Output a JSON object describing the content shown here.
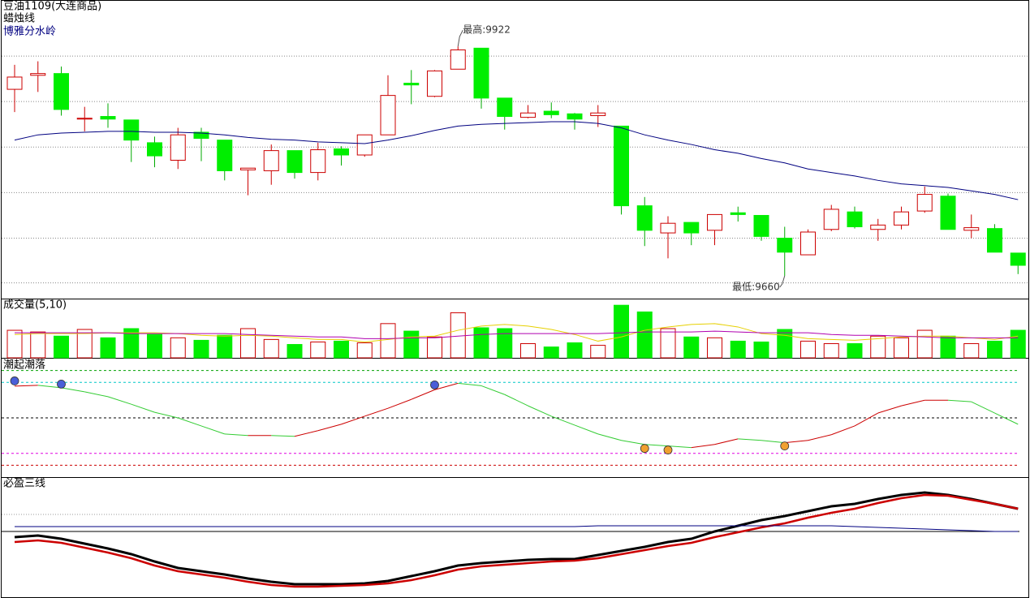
{
  "chart_data": [
    {
      "type": "candlestick",
      "title": "豆油1109(大连商品)",
      "subtitle": "蜡烛线",
      "up_color": "#cc0000",
      "down_color": "#00ee00",
      "open": [
        9873,
        9889,
        9891,
        9839,
        9842,
        9838,
        9812,
        9792,
        9824,
        9815,
        9781,
        9780,
        9803,
        9778,
        9805,
        9798,
        9821,
        9880,
        9865,
        9896,
        9920,
        9863,
        9841,
        9848,
        9845,
        9843,
        9831,
        9740,
        9709,
        9721,
        9712,
        9732,
        9729,
        9703,
        9684,
        9713,
        9733,
        9713,
        9718,
        9734,
        9751,
        9712,
        9714,
        9686
      ],
      "high": [
        9901,
        9905,
        9899,
        9853,
        9857,
        9838,
        9819,
        9829,
        9829,
        9815,
        9783,
        9810,
        9803,
        9812,
        9808,
        9821,
        9889,
        9895,
        9895,
        9922,
        9920,
        9863,
        9855,
        9858,
        9846,
        9855,
        9831,
        9750,
        9728,
        9721,
        9730,
        9739,
        9729,
        9716,
        9713,
        9741,
        9739,
        9725,
        9739,
        9762,
        9754,
        9730,
        9719,
        9686
      ],
      "low": [
        9847,
        9870,
        9843,
        9825,
        9829,
        9790,
        9784,
        9782,
        9791,
        9769,
        9752,
        9764,
        9771,
        9769,
        9786,
        9796,
        9821,
        9856,
        9864,
        9896,
        9851,
        9827,
        9840,
        9840,
        9827,
        9830,
        9730,
        9694,
        9680,
        9695,
        9695,
        9722,
        9700,
        9660,
        9684,
        9711,
        9714,
        9700,
        9713,
        9732,
        9713,
        9703,
        9687,
        9662
      ],
      "close": [
        9887,
        9891,
        9850,
        9840,
        9839,
        9815,
        9797,
        9821,
        9817,
        9780,
        9783,
        9803,
        9778,
        9804,
        9798,
        9821,
        9866,
        9878,
        9894,
        9918,
        9863,
        9842,
        9846,
        9844,
        9839,
        9846,
        9740,
        9712,
        9720,
        9709,
        9730,
        9730,
        9705,
        9687,
        9710,
        9736,
        9716,
        9718,
        9733,
        9753,
        9713,
        9715,
        9687,
        9672
      ],
      "series": [
        {
          "name": "博雅分水岭",
          "color": "#000080",
          "values": [
            9815,
            9821,
            9823,
            9824,
            9825,
            9825,
            9824,
            9824,
            9823,
            9821,
            9818,
            9816,
            9815,
            9813,
            9812,
            9811,
            9815,
            9820,
            9826,
            9831,
            9833,
            9834,
            9835,
            9836,
            9836,
            9834,
            9829,
            9821,
            9815,
            9810,
            9804,
            9800,
            9794,
            9789,
            9782,
            9778,
            9774,
            9769,
            9765,
            9763,
            9761,
            9757,
            9753,
            9747
          ]
        }
      ],
      "ylim": [
        9634,
        9975
      ],
      "gridlines": [
        9911,
        9859,
        9807,
        9755,
        9703,
        9652
      ],
      "annotations": [
        {
          "label": "最高:9922",
          "value": 9922
        },
        {
          "label": "最低:9660",
          "value": 9660
        }
      ]
    },
    {
      "type": "bar",
      "title": "成交量(5,10)",
      "up_color": "#cc0000",
      "down_color": "#00ee00",
      "values": [
        33,
        31,
        26,
        34,
        24,
        35,
        28,
        24,
        21,
        27,
        35,
        22,
        16,
        19,
        20,
        18,
        41,
        32,
        25,
        54,
        36,
        35,
        17,
        13,
        18,
        15,
        63,
        55,
        35,
        25,
        24,
        20,
        19,
        34,
        20,
        17,
        17,
        26,
        24,
        33,
        26,
        17,
        20,
        33
      ],
      "series": [
        {
          "color": "#e6d000",
          "values": [
            28,
            29,
            29,
            29,
            30,
            30,
            30,
            29,
            27,
            26,
            27,
            26,
            24,
            22,
            22,
            19,
            22,
            25,
            26,
            33,
            38,
            40,
            38,
            34,
            28,
            20,
            25,
            33,
            37,
            40,
            41,
            37,
            29,
            27,
            23,
            22,
            21,
            23,
            25,
            26,
            26,
            24,
            22,
            26
          ]
        },
        {
          "color": "#b000b0",
          "values": [
            30,
            30,
            30,
            30,
            30,
            29,
            29,
            29,
            29,
            29,
            28,
            27,
            26,
            25,
            25,
            23,
            23,
            24,
            24,
            26,
            28,
            29,
            29,
            29,
            29,
            29,
            30,
            31,
            31,
            31,
            32,
            31,
            30,
            30,
            30,
            28,
            27,
            27,
            26,
            25,
            24,
            24,
            24,
            24
          ]
        }
      ],
      "ylim": [
        0,
        70
      ]
    },
    {
      "type": "line",
      "title": "潮起潮落",
      "rise_color": "#cc0000",
      "fall_color": "#33cc33",
      "values": [
        76.8,
        77.5,
        75.4,
        72,
        67.9,
        61.5,
        54.7,
        50,
        43.2,
        36.4,
        35.1,
        35.1,
        34.4,
        39.2,
        44.6,
        51.4,
        58.1,
        65.6,
        73.7,
        79.2,
        77.1,
        69.7,
        60.2,
        51.4,
        43.9,
        36.4,
        31,
        27.6,
        26.3,
        24.9,
        27.6,
        32.3,
        31,
        29,
        31,
        35.8,
        43.2,
        54.1,
        60.2,
        64.9,
        64.9,
        63.6,
        54.1,
        44.6
      ],
      "levels": [
        {
          "value": 90,
          "color": "#00a000"
        },
        {
          "value": 80,
          "color": "#00c8c8"
        },
        {
          "value": 50,
          "color": "#000000"
        },
        {
          "value": 20,
          "color": "#e000e0"
        },
        {
          "value": 10,
          "color": "#cc0000"
        }
      ],
      "markers": [
        {
          "color": "#4a5fd8",
          "values": [
            81.2,
            null,
            78.5,
            null,
            null,
            null,
            null,
            null,
            null,
            null,
            null,
            null,
            null,
            null,
            null,
            null,
            null,
            null,
            77.8,
            null,
            null,
            null,
            null,
            null,
            null,
            null,
            null,
            null,
            null,
            null,
            null,
            null,
            null,
            null,
            null,
            null,
            null,
            null,
            null,
            null,
            null,
            null,
            null,
            null
          ]
        },
        {
          "color": "#f0a030",
          "values": [
            null,
            null,
            null,
            null,
            null,
            null,
            null,
            null,
            null,
            null,
            null,
            null,
            null,
            null,
            null,
            null,
            null,
            null,
            null,
            null,
            null,
            null,
            null,
            null,
            null,
            null,
            null,
            24.2,
            22.9,
            null,
            null,
            null,
            null,
            26.3,
            null,
            null,
            null,
            null,
            null,
            null,
            null,
            null,
            null,
            null
          ]
        }
      ],
      "ylim": [
        0,
        100
      ]
    },
    {
      "type": "line",
      "title": "必盈三线",
      "series": [
        {
          "color": "#000000",
          "width": 3,
          "values": [
            75,
            77,
            73,
            67,
            61,
            54,
            45,
            37,
            33,
            29,
            24,
            20,
            17,
            17,
            17,
            18,
            21,
            27,
            33,
            40,
            43,
            45,
            47,
            48,
            48,
            53,
            58,
            63,
            69,
            73,
            82,
            89,
            96,
            101,
            107,
            113,
            116,
            122,
            127,
            130,
            127,
            122,
            116,
            110
          ]
        },
        {
          "color": "#cc0000",
          "width": 2.5,
          "values": [
            69,
            71,
            68,
            62,
            56,
            49,
            40,
            33,
            29,
            25,
            20,
            16,
            14,
            14,
            15,
            16,
            18,
            22,
            28,
            35,
            39,
            41,
            43,
            45,
            46,
            49,
            54,
            59,
            64,
            68,
            75,
            81,
            87,
            92,
            99,
            105,
            110,
            117,
            123,
            127,
            126,
            121,
            116,
            110
          ]
        },
        {
          "color": "#000080",
          "width": 1,
          "values": [
            88,
            88,
            88,
            88,
            88,
            88,
            88,
            88,
            88,
            88,
            88,
            88,
            88,
            88,
            88,
            88,
            88,
            88,
            88,
            88,
            88,
            88,
            88,
            88,
            88,
            89,
            89,
            89,
            89,
            89,
            89,
            89,
            89,
            89,
            89,
            89,
            88,
            87,
            86,
            85,
            84,
            83,
            82,
            82
          ]
        }
      ],
      "levels": [
        {
          "value": 103,
          "color": "#999999",
          "style": "dotted"
        },
        {
          "value": 82,
          "color": "#000000",
          "style": "solid"
        }
      ],
      "ylim": [
        0,
        148
      ]
    }
  ]
}
